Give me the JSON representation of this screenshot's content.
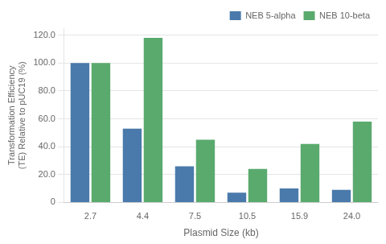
{
  "chart_data": {
    "type": "bar",
    "categories": [
      "2.7",
      "4.4",
      "7.5",
      "10.5",
      "15.9",
      "24.0"
    ],
    "series": [
      {
        "name": "NEB 5-alpha",
        "color": "#4a7aab",
        "values": [
          100,
          53,
          26,
          7,
          10,
          9
        ]
      },
      {
        "name": "NEB 10-beta",
        "color": "#5aaa6e",
        "values": [
          100,
          118,
          45,
          24,
          42,
          58
        ]
      }
    ],
    "xlabel": "Plasmid Size (kb)",
    "ylabel": "Transformation Efficiency\n(TE) Relative to pUC19 (%)",
    "ylim": [
      0,
      125
    ],
    "yticks": [
      0,
      {
        "value": 20,
        "label": "20.0"
      },
      {
        "value": 40,
        "label": "40.0"
      },
      {
        "value": 60,
        "label": "60.0"
      },
      {
        "value": 80,
        "label": "80.0"
      },
      {
        "value": 100,
        "label": "100.0"
      },
      {
        "value": 120,
        "label": "120.0"
      }
    ],
    "grid": true,
    "legend": "upper right"
  }
}
